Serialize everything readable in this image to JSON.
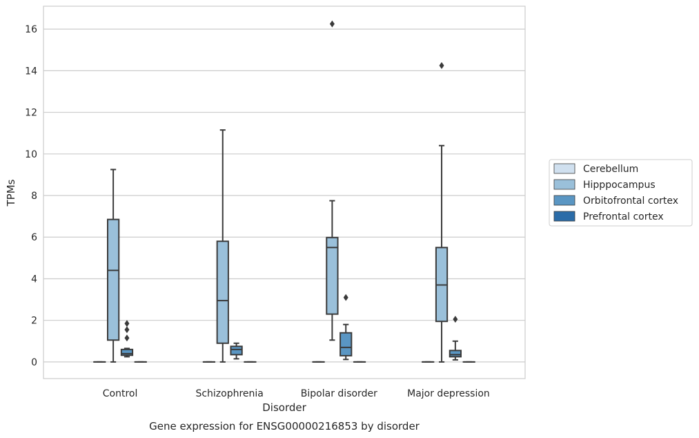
{
  "chart_data": {
    "type": "boxplot",
    "title": "",
    "caption": "Gene expression for ENSG00000216853 by disorder",
    "xlabel": "Disorder",
    "ylabel": "TPMs",
    "ylim": [
      -0.8,
      17.1
    ],
    "yticks": [
      0,
      2,
      4,
      6,
      8,
      10,
      12,
      14,
      16
    ],
    "grid": "horizontal",
    "legend_position": "right",
    "categories": [
      "Control",
      "Schizophrenia",
      "Bipolar disorder",
      "Major depression"
    ],
    "series": [
      {
        "name": "Cerebellum",
        "color": "#d0e0ef",
        "boxes": [
          {
            "min": 0,
            "q1": 0,
            "median": 0,
            "q3": 0,
            "max": 0,
            "outliers": []
          },
          {
            "min": 0,
            "q1": 0,
            "median": 0,
            "q3": 0,
            "max": 0,
            "outliers": []
          },
          {
            "min": 0,
            "q1": 0,
            "median": 0,
            "q3": 0,
            "max": 0,
            "outliers": []
          },
          {
            "min": 0,
            "q1": 0,
            "median": 0,
            "q3": 0,
            "max": 0,
            "outliers": []
          }
        ]
      },
      {
        "name": "Hipppocampus",
        "color": "#9ac0da",
        "boxes": [
          {
            "min": 0,
            "q1": 1.05,
            "median": 4.4,
            "q3": 6.85,
            "max": 9.25,
            "outliers": []
          },
          {
            "min": 0,
            "q1": 0.9,
            "median": 2.95,
            "q3": 5.8,
            "max": 11.15,
            "outliers": []
          },
          {
            "min": 1.05,
            "q1": 2.3,
            "median": 5.5,
            "q3": 5.98,
            "max": 7.75,
            "outliers": [
              16.25
            ]
          },
          {
            "min": 0,
            "q1": 1.95,
            "median": 3.7,
            "q3": 5.5,
            "max": 10.4,
            "outliers": [
              14.25
            ]
          }
        ]
      },
      {
        "name": "Orbitofrontal cortex",
        "color": "#5a96c3",
        "boxes": [
          {
            "min": 0.25,
            "q1": 0.32,
            "median": 0.4,
            "q3": 0.6,
            "max": 0.65,
            "outliers": [
              1.15,
              1.55,
              1.85
            ]
          },
          {
            "min": 0.15,
            "q1": 0.35,
            "median": 0.6,
            "q3": 0.75,
            "max": 0.9,
            "outliers": []
          },
          {
            "min": 0.12,
            "q1": 0.3,
            "median": 0.7,
            "q3": 1.4,
            "max": 1.8,
            "outliers": [
              3.1
            ]
          },
          {
            "min": 0.1,
            "q1": 0.25,
            "median": 0.35,
            "q3": 0.55,
            "max": 1.0,
            "outliers": [
              2.05
            ]
          }
        ]
      },
      {
        "name": "Prefrontal cortex",
        "color": "#2b6ca8",
        "boxes": [
          {
            "min": 0,
            "q1": 0,
            "median": 0,
            "q3": 0,
            "max": 0,
            "outliers": []
          },
          {
            "min": 0,
            "q1": 0,
            "median": 0,
            "q3": 0,
            "max": 0,
            "outliers": []
          },
          {
            "min": 0,
            "q1": 0,
            "median": 0,
            "q3": 0,
            "max": 0,
            "outliers": []
          },
          {
            "min": 0,
            "q1": 0,
            "median": 0,
            "q3": 0,
            "max": 0,
            "outliers": []
          }
        ]
      }
    ]
  }
}
